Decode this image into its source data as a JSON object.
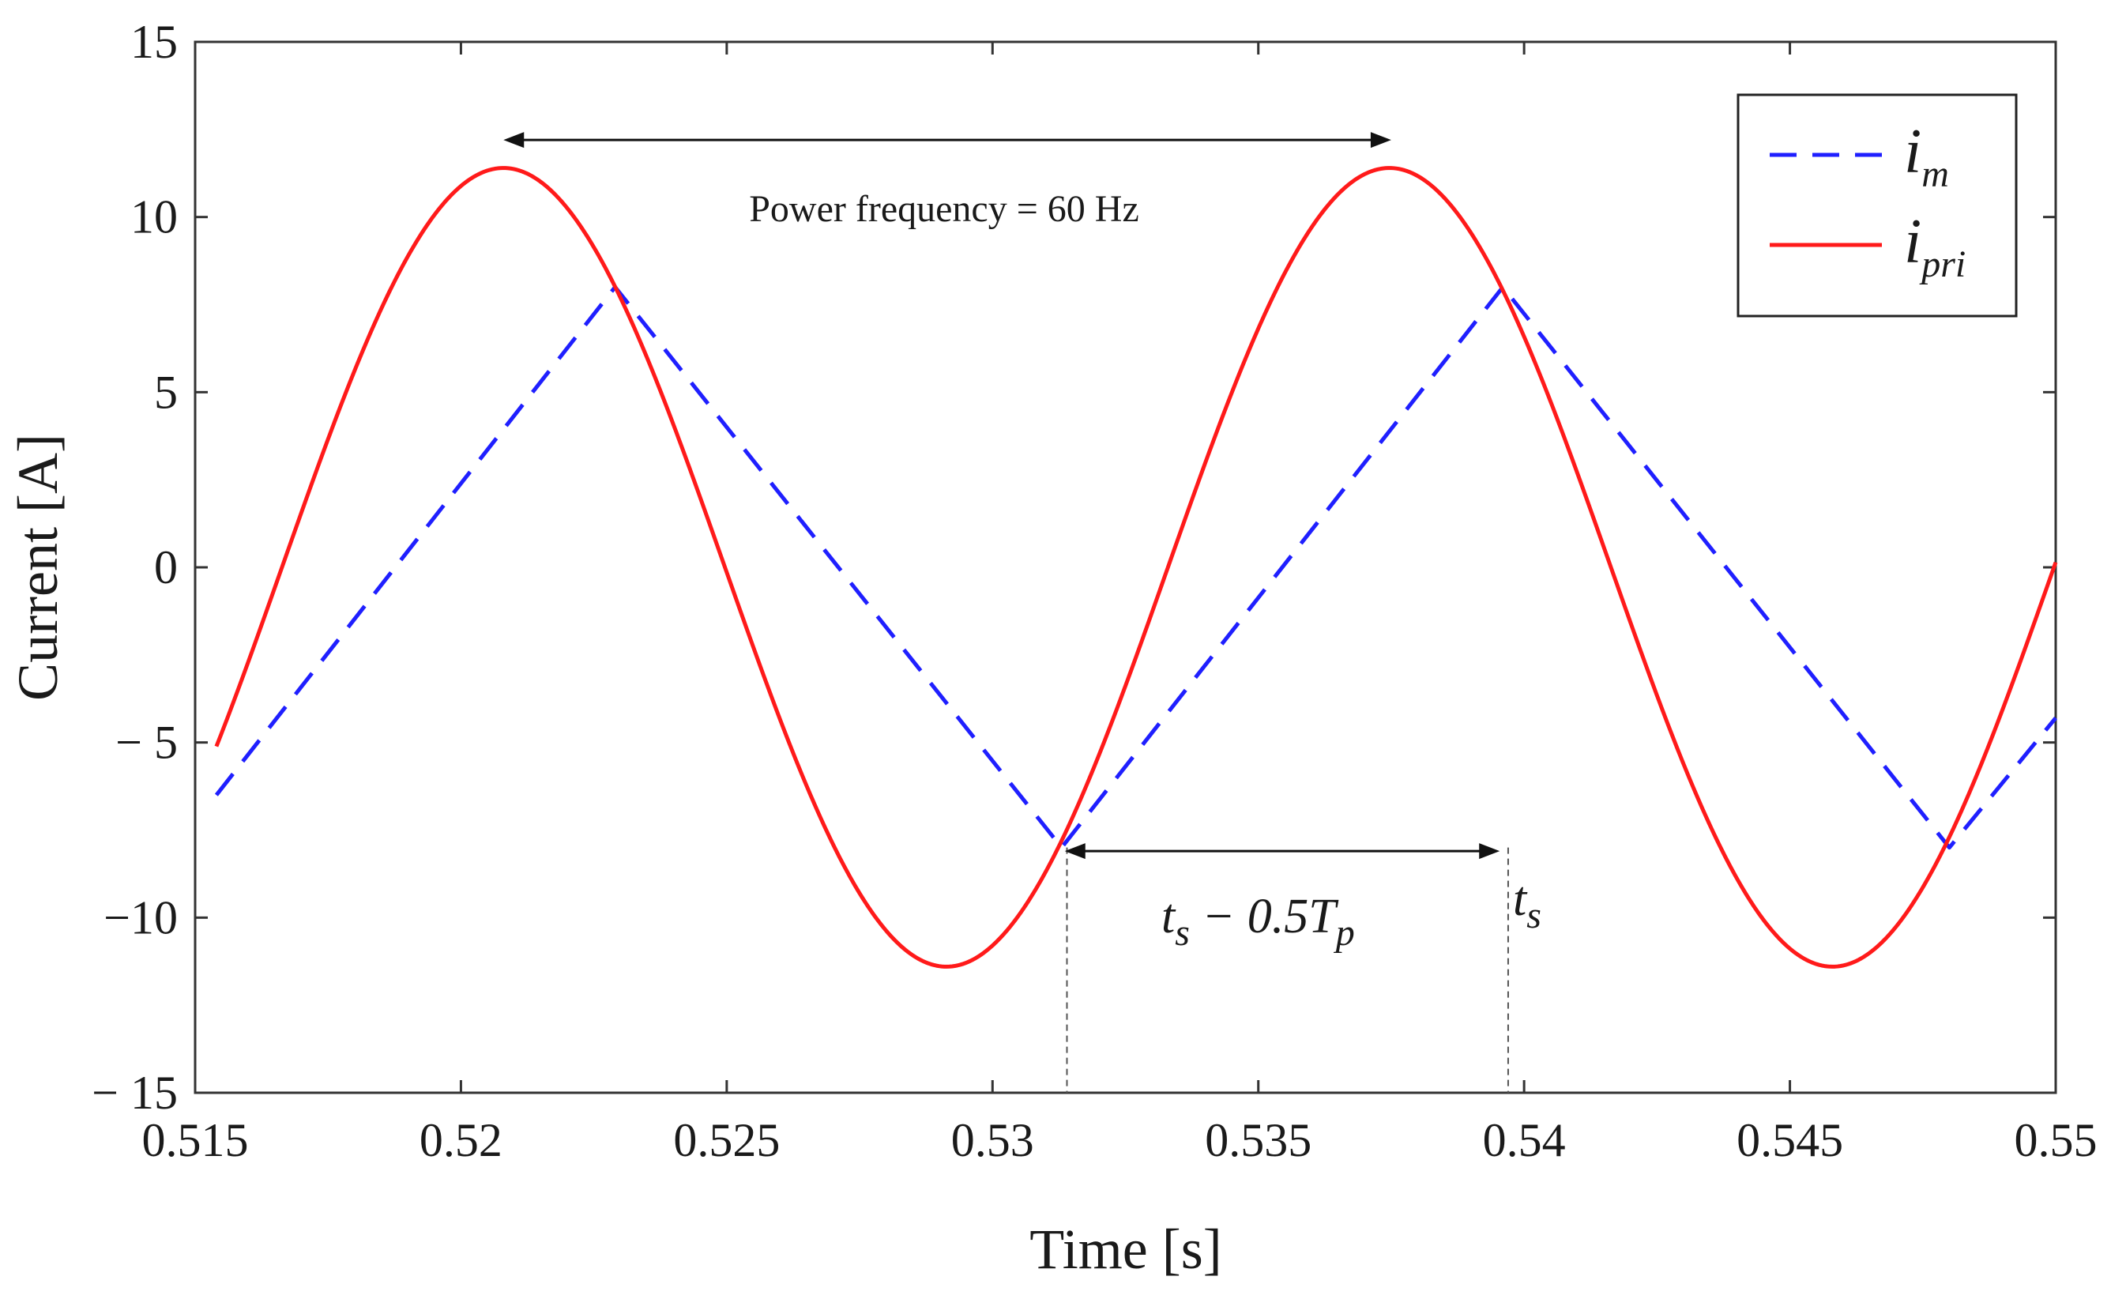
{
  "chart_data": {
    "type": "line",
    "title": "",
    "xlabel": "Time [s]",
    "ylabel": "Current [A]",
    "xlim": [
      0.515,
      0.55
    ],
    "ylim": [
      -15,
      15
    ],
    "x_ticks": [
      0.515,
      0.52,
      0.525,
      0.53,
      0.535,
      0.54,
      0.545,
      0.55
    ],
    "x_tick_labels": [
      "0.515",
      "0.52",
      "0.525",
      "0.53",
      "0.535",
      "0.54",
      "0.545",
      "0.55"
    ],
    "y_ticks": [
      15,
      10,
      5,
      0,
      -5,
      -10,
      -15
    ],
    "y_tick_labels": [
      "15",
      "10",
      "5",
      "0",
      "− 5",
      "−10",
      "− 15"
    ],
    "grid": false,
    "legend_position": "top-right",
    "series": [
      {
        "name": "i_m",
        "legend_main": "i",
        "legend_sub": "m",
        "color": "#1f1fff",
        "style": "dashed",
        "x": [
          0.5154,
          0.5229,
          0.5313,
          0.5396,
          0.548,
          0.55
        ],
        "y": [
          -6.5,
          8.0,
          -8.0,
          8.0,
          -8.0,
          -4.3
        ]
      },
      {
        "name": "i_pri",
        "legend_main": "i",
        "legend_sub": "pri",
        "color": "#ff1a1a",
        "style": "solid",
        "model": "sine",
        "amplitude": 11.4,
        "frequency_hz": 60,
        "peak_time": 0.5208,
        "x_start": 0.5154,
        "x_end": 0.55
      }
    ],
    "annotations": {
      "frequency_text": "Power frequency = 60 Hz",
      "frequency_arrow_x": [
        0.5208,
        0.5375
      ],
      "frequency_arrow_y": 12.2,
      "interval_arrow_x": [
        0.5313,
        0.5396
      ],
      "interval_arrow_y": -8.1,
      "interval_label_main": "t",
      "interval_label_sub1": "s",
      "interval_label_mid": " − 0.5T",
      "interval_label_sub2": "p",
      "ts_label_main": "t",
      "ts_label_sub": "s",
      "guide_lines_x": [
        0.5314,
        0.5397
      ]
    }
  }
}
